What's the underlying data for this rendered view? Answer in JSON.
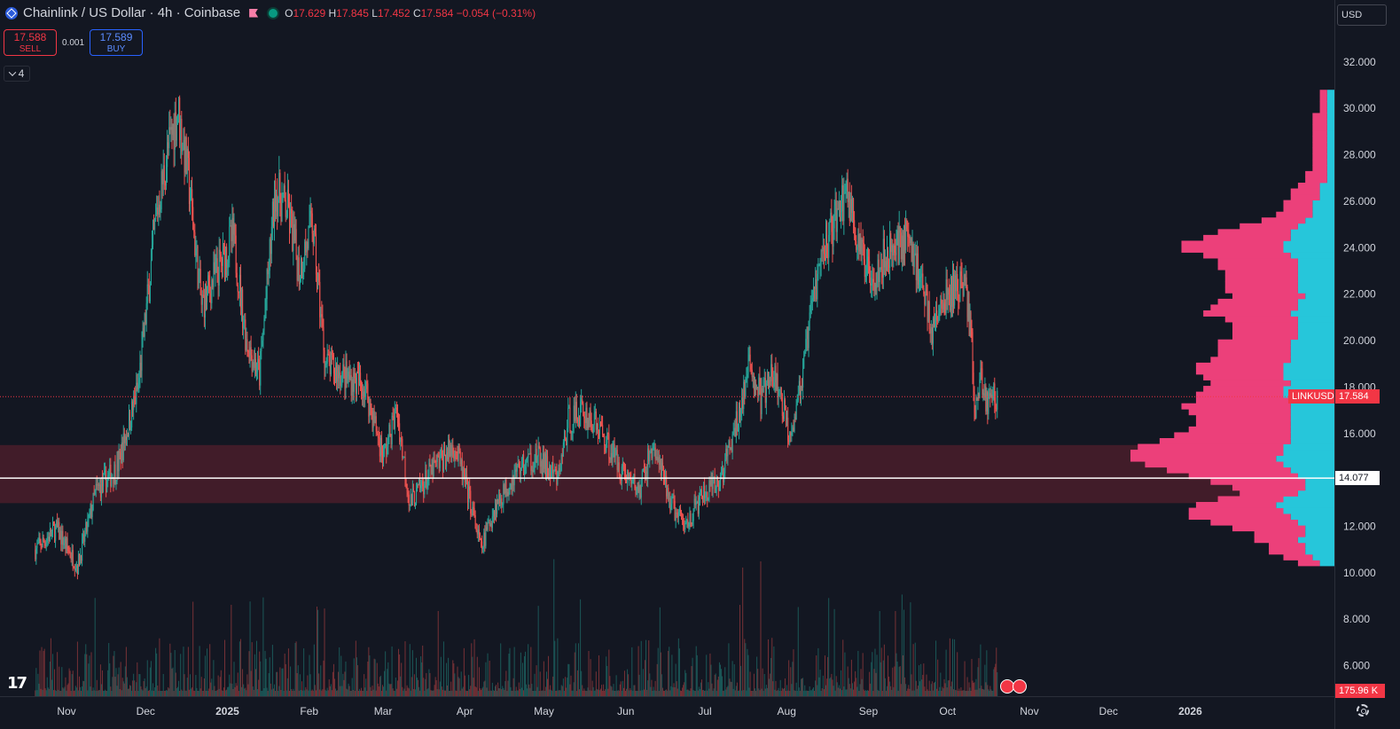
{
  "header": {
    "title": "Chainlink / US Dollar · 4h · Coinbase",
    "open_label": "O",
    "open": "17.629",
    "high_label": "H",
    "high": "17.845",
    "low_label": "L",
    "low": "17.452",
    "close_label": "C",
    "close": "17.584",
    "change": "−0.054 (−0.31%)"
  },
  "trade": {
    "sell_price": "17.588",
    "sell_label": "SELL",
    "spread": "0.001",
    "buy_price": "17.589",
    "buy_label": "BUY"
  },
  "indicators_count": "4",
  "currency": "USD",
  "labels": {
    "symbol": "LINKUSD",
    "last_price": "17.584",
    "poc_price": "14.077",
    "volume": "175.96 K"
  },
  "logo_text": "17",
  "colors": {
    "up": "#26a69a",
    "down": "#ef5350",
    "zone": "#4a1d2a",
    "profile_up": "#26c6da",
    "profile_down": "#ec407a",
    "bg": "#131722"
  },
  "chart_data": {
    "type": "candlestick",
    "symbol": "LINKUSD",
    "timeframe": "4h",
    "ylim": [
      4.5,
      33.5
    ],
    "y_ticks": [
      "32.000",
      "30.000",
      "28.000",
      "26.000",
      "24.000",
      "22.000",
      "20.000",
      "18.000",
      "16.000",
      "14.000",
      "12.000",
      "10.000",
      "8.000",
      "6.000"
    ],
    "x_ticks": [
      "Nov",
      "Dec",
      "2025",
      "Feb",
      "Mar",
      "Apr",
      "May",
      "Jun",
      "Jul",
      "Aug",
      "Sep",
      "Oct",
      "Nov",
      "Dec",
      "2026"
    ],
    "price_path": [
      [
        "2024-10-20",
        11.0
      ],
      [
        "2024-10-28",
        11.9
      ],
      [
        "2024-11-05",
        10.3
      ],
      [
        "2024-11-12",
        13.5
      ],
      [
        "2024-11-20",
        14.5
      ],
      [
        "2024-11-28",
        18.0
      ],
      [
        "2024-12-05",
        25.5
      ],
      [
        "2024-12-09",
        28.0
      ],
      [
        "2024-12-13",
        30.0
      ],
      [
        "2024-12-17",
        27.0
      ],
      [
        "2024-12-22",
        21.5
      ],
      [
        "2024-12-28",
        23.0
      ],
      [
        "2025-01-03",
        24.5
      ],
      [
        "2025-01-08",
        20.0
      ],
      [
        "2025-01-13",
        18.5
      ],
      [
        "2025-01-19",
        26.5
      ],
      [
        "2025-01-24",
        25.5
      ],
      [
        "2025-01-28",
        23.0
      ],
      [
        "2025-02-02",
        25.0
      ],
      [
        "2025-02-07",
        19.0
      ],
      [
        "2025-02-14",
        18.5
      ],
      [
        "2025-02-22",
        18.0
      ],
      [
        "2025-03-01",
        15.0
      ],
      [
        "2025-03-06",
        17.0
      ],
      [
        "2025-03-11",
        13.0
      ],
      [
        "2025-03-20",
        14.5
      ],
      [
        "2025-03-28",
        15.5
      ],
      [
        "2025-04-03",
        13.0
      ],
      [
        "2025-04-07",
        11.0
      ],
      [
        "2025-04-12",
        12.8
      ],
      [
        "2025-04-21",
        14.5
      ],
      [
        "2025-04-28",
        15.0
      ],
      [
        "2025-05-06",
        14.0
      ],
      [
        "2025-05-10",
        16.5
      ],
      [
        "2025-05-15",
        17.0
      ],
      [
        "2025-05-22",
        16.2
      ],
      [
        "2025-05-30",
        14.5
      ],
      [
        "2025-06-06",
        13.5
      ],
      [
        "2025-06-11",
        15.5
      ],
      [
        "2025-06-18",
        13.0
      ],
      [
        "2025-06-23",
        12.0
      ],
      [
        "2025-06-30",
        13.3
      ],
      [
        "2025-07-06",
        13.8
      ],
      [
        "2025-07-12",
        16.0
      ],
      [
        "2025-07-18",
        19.0
      ],
      [
        "2025-07-22",
        17.5
      ],
      [
        "2025-07-27",
        18.5
      ],
      [
        "2025-08-02",
        16.0
      ],
      [
        "2025-08-07",
        18.5
      ],
      [
        "2025-08-11",
        22.0
      ],
      [
        "2025-08-15",
        24.0
      ],
      [
        "2025-08-20",
        25.5
      ],
      [
        "2025-08-24",
        26.5
      ],
      [
        "2025-08-29",
        23.5
      ],
      [
        "2025-09-03",
        23.0
      ],
      [
        "2025-09-10",
        24.0
      ],
      [
        "2025-09-15",
        24.5
      ],
      [
        "2025-09-20",
        23.0
      ],
      [
        "2025-09-25",
        20.5
      ],
      [
        "2025-10-01",
        22.0
      ],
      [
        "2025-10-07",
        22.5
      ],
      [
        "2025-10-10",
        20.5
      ],
      [
        "2025-10-11",
        16.5
      ],
      [
        "2025-10-13",
        18.5
      ],
      [
        "2025-10-16",
        17.3
      ],
      [
        "2025-10-18",
        17.8
      ],
      [
        "2025-10-20",
        17.6
      ]
    ],
    "last_price": 17.584,
    "poc_price": 14.077,
    "value_area": [
      13.0,
      15.5
    ],
    "volume_profile": {
      "price_step": 0.25,
      "buy": [
        2,
        3,
        4,
        4,
        5,
        4,
        4,
        5,
        6,
        7,
        8,
        7,
        5,
        4,
        4,
        5,
        6,
        7,
        8,
        7,
        7,
        6,
        6,
        6,
        6,
        6,
        6,
        6,
        6,
        7,
        7,
        6,
        7,
        7,
        7,
        6,
        6,
        6,
        6,
        5,
        5,
        5,
        5,
        6,
        5,
        5,
        4,
        5,
        5,
        5,
        5,
        5,
        5,
        6,
        7,
        7,
        6,
        6,
        5,
        4,
        3,
        3,
        3,
        2,
        2,
        2,
        1,
        1,
        1,
        1,
        1,
        1,
        1,
        1,
        1,
        1,
        1,
        1,
        1,
        1,
        1,
        1
      ],
      "sell": [
        3,
        4,
        5,
        5,
        6,
        7,
        10,
        12,
        14,
        13,
        11,
        9,
        8,
        10,
        13,
        15,
        17,
        19,
        20,
        21,
        20,
        18,
        16,
        14,
        13,
        13,
        14,
        15,
        13,
        12,
        11,
        11,
        11,
        12,
        12,
        11,
        10,
        10,
        10,
        9,
        9,
        9,
        10,
        12,
        12,
        11,
        10,
        10,
        10,
        10,
        10,
        11,
        11,
        12,
        14,
        14,
        12,
        10,
        8,
        6,
        5,
        4,
        4,
        4,
        4,
        3,
        3,
        3,
        2,
        2,
        2,
        2,
        2,
        2,
        2,
        2,
        2,
        2,
        1,
        1,
        1,
        1
      ]
    },
    "grid": false,
    "legend": "none"
  }
}
